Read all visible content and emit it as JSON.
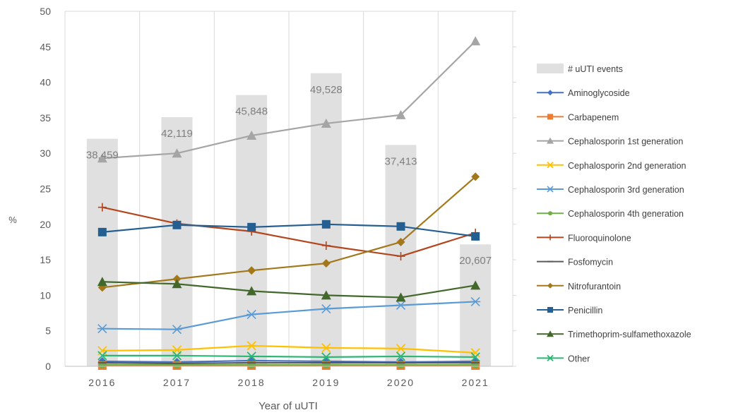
{
  "chart_data": {
    "type": "bar",
    "title": "",
    "xlabel": "Year of uUTI",
    "ylabel": "%",
    "categories": [
      "2016",
      "2017",
      "2018",
      "2019",
      "2020",
      "2021"
    ],
    "ylim": [
      0,
      50
    ],
    "yticks": [
      0,
      5,
      10,
      15,
      20,
      25,
      30,
      35,
      40,
      45,
      50
    ],
    "grid": "vertical",
    "legend_position": "right",
    "bar_series": {
      "name": "# uUTI events",
      "color": "#e0e0e0",
      "values": [
        38459,
        42119,
        45848,
        49528,
        37413,
        20607
      ],
      "labels": [
        "38,459",
        "42,119",
        "45,848",
        "49,528",
        "37,413",
        "20,607"
      ],
      "secondary_axis_max": 60000
    },
    "series": [
      {
        "name": "Aminoglycoside",
        "type": "line",
        "color": "#4472c4",
        "marker": "diamond",
        "values": [
          0.7,
          0.6,
          0.8,
          0.7,
          0.6,
          0.7
        ]
      },
      {
        "name": "Carbapenem",
        "type": "line",
        "color": "#ed7d31",
        "marker": "square",
        "values": [
          0.1,
          0.1,
          0.1,
          0.1,
          0.1,
          0.1
        ]
      },
      {
        "name": "Cephalosporin 1st generation",
        "type": "line",
        "color": "#a5a5a5",
        "marker": "triangle",
        "values": [
          29.3,
          30.0,
          32.5,
          34.2,
          35.4,
          45.8
        ]
      },
      {
        "name": "Cephalosporin 2nd generation",
        "type": "line",
        "color": "#ffc000",
        "marker": "x",
        "values": [
          2.2,
          2.3,
          2.9,
          2.6,
          2.5,
          1.9
        ]
      },
      {
        "name": "Cephalosporin 3rd generation",
        "type": "line",
        "color": "#5b9bd5",
        "marker": "star",
        "values": [
          5.3,
          5.2,
          7.3,
          8.1,
          8.6,
          9.1
        ]
      },
      {
        "name": "Cephalosporin 4th generation",
        "type": "line",
        "color": "#70ad47",
        "marker": "circle",
        "values": [
          0.2,
          0.2,
          0.2,
          0.2,
          0.2,
          0.2
        ]
      },
      {
        "name": "Fluoroquinolone",
        "type": "line",
        "color": "#b4451c",
        "marker": "plus",
        "values": [
          22.4,
          20.1,
          19.0,
          17.0,
          15.5,
          18.8
        ]
      },
      {
        "name": "Fosfomycin",
        "type": "line",
        "color": "#5a5a5a",
        "marker": "dash",
        "values": [
          0.5,
          0.4,
          0.5,
          0.5,
          0.5,
          0.5
        ]
      },
      {
        "name": "Nitrofurantoin",
        "type": "line",
        "color": "#a3781b",
        "marker": "diamond",
        "values": [
          11.1,
          12.3,
          13.5,
          14.5,
          17.5,
          26.7
        ]
      },
      {
        "name": "Penicillin",
        "type": "line",
        "color": "#255e91",
        "marker": "square",
        "values": [
          18.9,
          19.9,
          19.6,
          20.0,
          19.7,
          18.3
        ]
      },
      {
        "name": "Trimethoprim-sulfamethoxazole",
        "type": "line",
        "color": "#43682b",
        "marker": "triangle",
        "values": [
          11.9,
          11.6,
          10.6,
          10.0,
          9.7,
          11.4
        ]
      },
      {
        "name": "Other",
        "type": "line",
        "color": "#2bb673",
        "marker": "x",
        "values": [
          1.5,
          1.5,
          1.4,
          1.3,
          1.4,
          1.3
        ]
      }
    ]
  }
}
